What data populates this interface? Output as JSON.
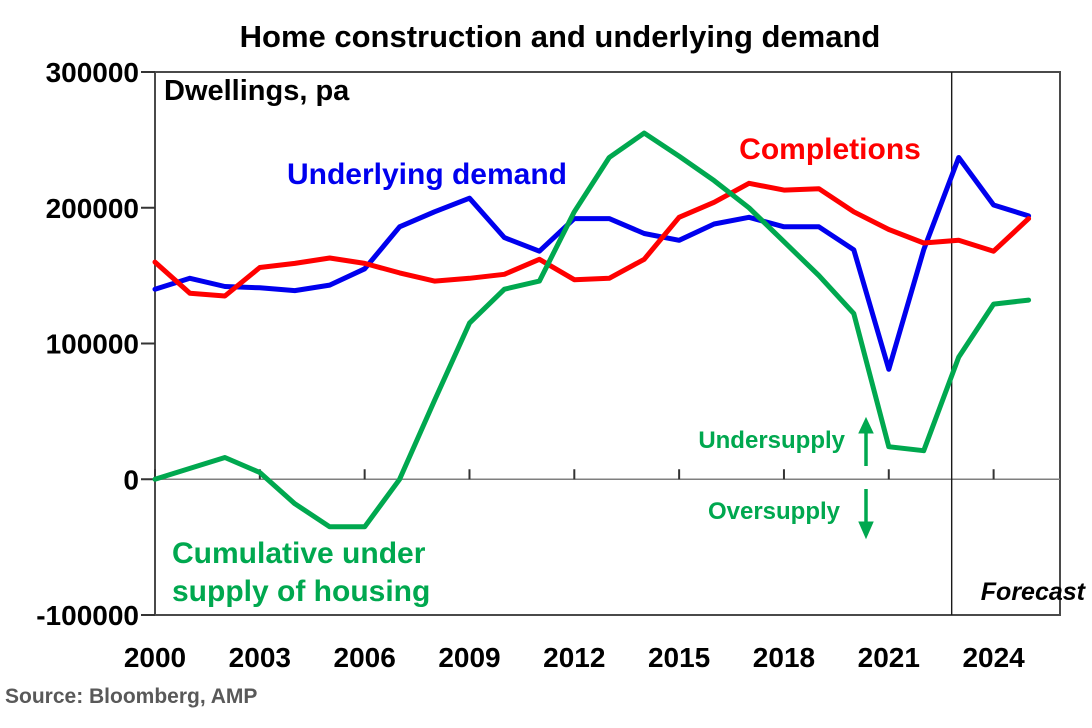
{
  "title": "Home construction and underlying demand",
  "plot_note": "Dwellings, pa",
  "source": "Source: Bloomberg, AMP",
  "labels": {
    "underlying_demand": "Underlying demand",
    "completions": "Completions",
    "cumulative_line1": "Cumulative under",
    "cumulative_line2": "supply of housing",
    "undersupply": "Undersupply",
    "oversupply": "Oversupply",
    "forecast": "Forecast"
  },
  "colors": {
    "underlying_demand": "#0000EE",
    "completions": "#FF0000",
    "cumulative_undersupply": "#00A84F",
    "axis": "#4a4a4a",
    "tick": "#333333",
    "zero_line": "#7f7f7f",
    "forecast_line": "#1a1a1a",
    "source_text": "#595959"
  },
  "chart_data": {
    "type": "line",
    "title": "Home construction and underlying demand",
    "ylabel": "Dwellings, pa",
    "xlabel": "",
    "grid": false,
    "legend_position": "inline-labels",
    "ylim": [
      -100000,
      300000
    ],
    "yticks": [
      300000,
      200000,
      100000,
      0,
      -100000
    ],
    "xticks": [
      2000,
      2003,
      2006,
      2009,
      2012,
      2015,
      2018,
      2021,
      2024
    ],
    "x_axis_end": 2025.9,
    "forecast_start_x": 2022.8,
    "x": [
      2000,
      2001,
      2002,
      2003,
      2004,
      2005,
      2006,
      2007,
      2008,
      2009,
      2010,
      2011,
      2012,
      2013,
      2014,
      2015,
      2016,
      2017,
      2018,
      2019,
      2020,
      2021,
      2022,
      2023,
      2024,
      2025
    ],
    "series": [
      {
        "name": "Underlying demand",
        "color_key": "underlying_demand",
        "values": [
          140000,
          148000,
          142000,
          141000,
          139000,
          143000,
          155000,
          186000,
          197000,
          207000,
          178000,
          168000,
          192000,
          192000,
          181000,
          176000,
          188000,
          193000,
          186000,
          186000,
          169000,
          81000,
          169000,
          237000,
          202000,
          194000
        ]
      },
      {
        "name": "Completions",
        "color_key": "completions",
        "values": [
          160000,
          137000,
          135000,
          156000,
          159000,
          163000,
          159000,
          152000,
          146000,
          148000,
          151000,
          162000,
          147000,
          148000,
          162000,
          193000,
          204000,
          218000,
          213000,
          214000,
          197000,
          184000,
          174000,
          176000,
          168000,
          192000
        ]
      },
      {
        "name": "Cumulative under supply of housing",
        "color_key": "cumulative_undersupply",
        "values": [
          0,
          8000,
          16000,
          5000,
          -18000,
          -35000,
          -35000,
          0,
          58000,
          115000,
          140000,
          146000,
          197000,
          237000,
          255000,
          238000,
          220000,
          200000,
          175000,
          150000,
          122000,
          24000,
          21000,
          90000,
          129000,
          132000
        ]
      }
    ]
  }
}
